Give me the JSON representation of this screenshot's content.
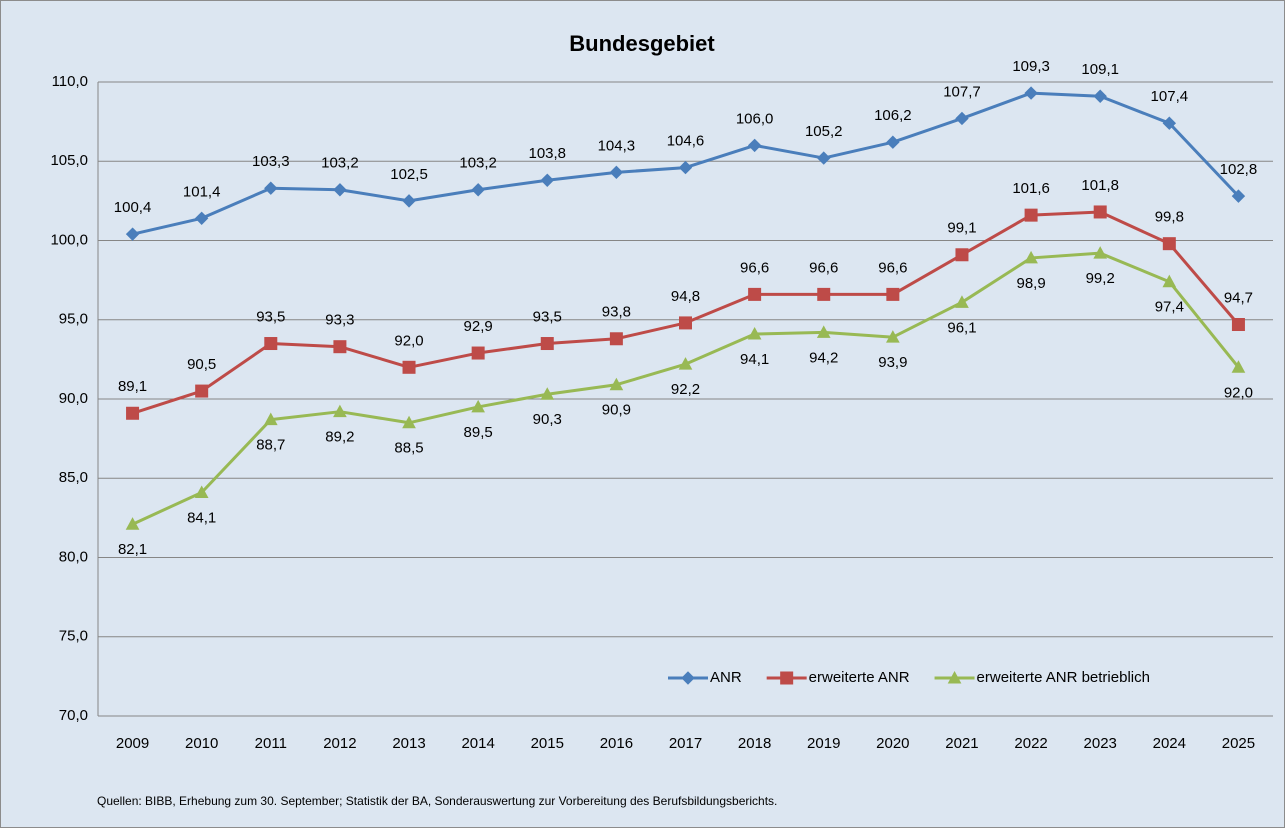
{
  "chart_data": {
    "type": "line",
    "title": "Bundesgebiet",
    "categories": [
      "2009",
      "2010",
      "2011",
      "2012",
      "2013",
      "2014",
      "2015",
      "2016",
      "2017",
      "2018",
      "2019",
      "2020",
      "2021",
      "2022",
      "2023",
      "2024",
      "2025"
    ],
    "series": [
      {
        "name": "ANR",
        "color": "#4a7ebb",
        "marker": "diamond",
        "label_position": "above",
        "values": [
          100.4,
          101.4,
          103.3,
          103.2,
          102.5,
          103.2,
          103.8,
          104.3,
          104.6,
          106.0,
          105.2,
          106.2,
          107.7,
          109.3,
          109.1,
          107.4,
          102.8
        ],
        "value_labels": [
          "100,4",
          "101,4",
          "103,3",
          "103,2",
          "102,5",
          "103,2",
          "103,8",
          "104,3",
          "104,6",
          "106,0",
          "105,2",
          "106,2",
          "107,7",
          "109,3",
          "109,1",
          "107,4",
          "102,8"
        ]
      },
      {
        "name": "erweiterte ANR",
        "color": "#be4b48",
        "marker": "square",
        "label_position": "above",
        "values": [
          89.1,
          90.5,
          93.5,
          93.3,
          92.0,
          92.9,
          93.5,
          93.8,
          94.8,
          96.6,
          96.6,
          96.6,
          99.1,
          101.6,
          101.8,
          99.8,
          94.7
        ],
        "value_labels": [
          "89,1",
          "90,5",
          "93,5",
          "93,3",
          "92,0",
          "92,9",
          "93,5",
          "93,8",
          "94,8",
          "96,6",
          "96,6",
          "96,6",
          "99,1",
          "101,6",
          "101,8",
          "99,8",
          "94,7"
        ]
      },
      {
        "name": "erweiterte ANR betrieblich",
        "color": "#98b954",
        "marker": "triangle",
        "label_position": "below",
        "values": [
          82.1,
          84.1,
          88.7,
          89.2,
          88.5,
          89.5,
          90.3,
          90.9,
          92.2,
          94.1,
          94.2,
          93.9,
          96.1,
          98.9,
          99.2,
          97.4,
          92.0
        ],
        "value_labels": [
          "82,1",
          "84,1",
          "88,7",
          "89,2",
          "88,5",
          "89,5",
          "90,3",
          "90,9",
          "92,2",
          "94,1",
          "94,2",
          "93,9",
          "96,1",
          "98,9",
          "99,2",
          "97,4",
          "92,0"
        ]
      }
    ],
    "ylim": [
      70,
      110
    ],
    "yticks": [
      {
        "value": 70,
        "label": "70,0"
      },
      {
        "value": 75,
        "label": "75,0"
      },
      {
        "value": 80,
        "label": "80,0"
      },
      {
        "value": 85,
        "label": "85,0"
      },
      {
        "value": 90,
        "label": "90,0"
      },
      {
        "value": 95,
        "label": "95,0"
      },
      {
        "value": 100,
        "label": "100,0"
      },
      {
        "value": 105,
        "label": "105,0"
      },
      {
        "value": 110,
        "label": "110,0"
      }
    ],
    "grid": true,
    "legend": "bottom-right",
    "source": "Quellen: BIBB, Erhebung zum 30. September; Statistik der BA, Sonderauswertung zur Vorbereitung des Berufsbildungsberichts."
  }
}
